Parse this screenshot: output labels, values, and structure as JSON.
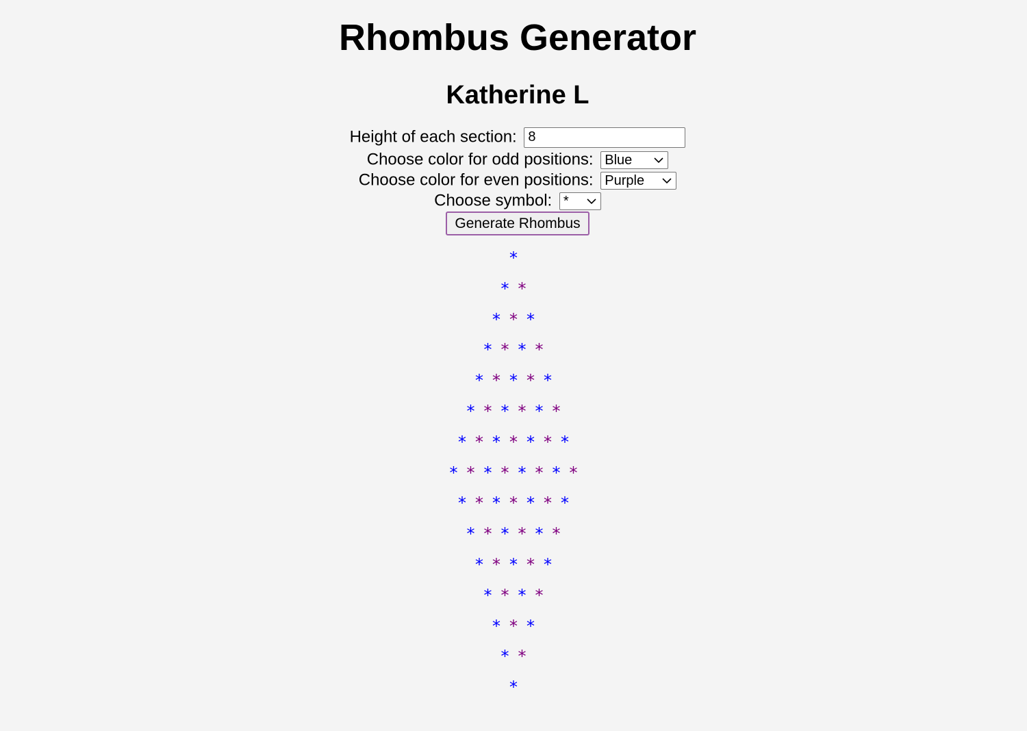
{
  "page": {
    "title": "Rhombus Generator",
    "author": "Katherine L"
  },
  "form": {
    "height_label": "Height of each section:",
    "height_value": "8",
    "odd_label": "Choose color for odd positions:",
    "odd_selected": "Blue",
    "even_label": "Choose color for even positions:",
    "even_selected": "Purple",
    "symbol_label": "Choose symbol:",
    "symbol_selected": "*",
    "button_label": "Generate Rhombus"
  },
  "rhombus": {
    "section_height": 8,
    "symbol": "*",
    "odd_color": "#0000ff",
    "even_color": "#800080",
    "row_counts": [
      1,
      2,
      3,
      4,
      5,
      6,
      7,
      8,
      7,
      6,
      5,
      4,
      3,
      2,
      1
    ]
  }
}
